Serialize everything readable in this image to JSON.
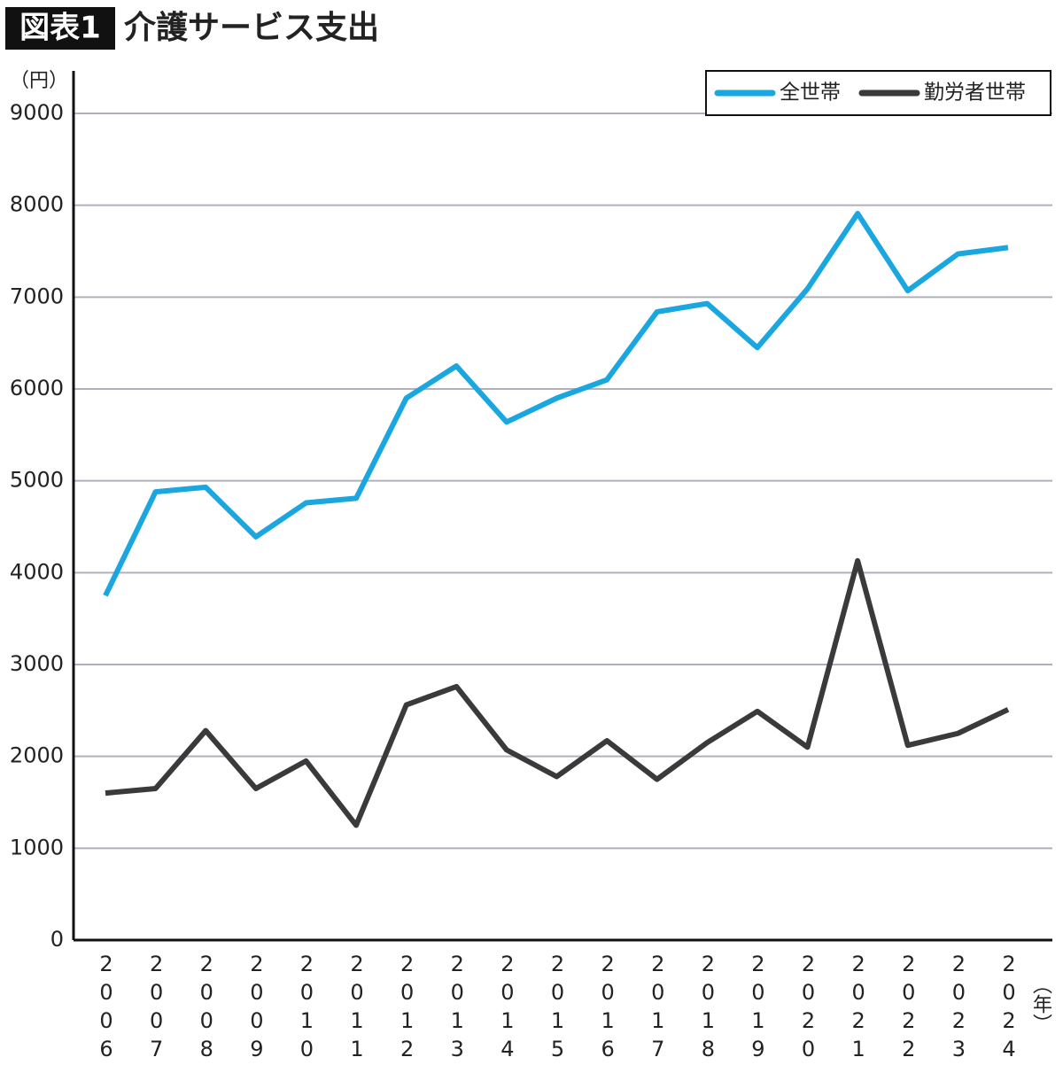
{
  "chart_data": {
    "type": "line",
    "figure_label": "図表1",
    "title": "介護サービス支出",
    "y_unit": "（円）",
    "x_unit": "（年）",
    "categories": [
      "2006",
      "2007",
      "2008",
      "2009",
      "2010",
      "2011",
      "2012",
      "2013",
      "2014",
      "2015",
      "2016",
      "2017",
      "2018",
      "2019",
      "2020",
      "2021",
      "2022",
      "2023",
      "2024"
    ],
    "series": [
      {
        "name": "全世帯",
        "color": "#1aa7e0",
        "values": [
          3750,
          4880,
          4930,
          4390,
          4760,
          4810,
          5900,
          6250,
          5640,
          5900,
          6100,
          6840,
          6930,
          6450,
          7090,
          7910,
          7070,
          7470,
          7540
        ]
      },
      {
        "name": "勤労者世帯",
        "color": "#3a3a3a",
        "values": [
          1600,
          1650,
          2280,
          1650,
          1950,
          1250,
          2560,
          2760,
          2070,
          1780,
          2170,
          1750,
          2150,
          2490,
          2100,
          4130,
          2120,
          2250,
          2510
        ]
      }
    ],
    "ylim": [
      0,
      9000
    ],
    "yticks": [
      0,
      1000,
      2000,
      3000,
      4000,
      5000,
      6000,
      7000,
      8000,
      9000
    ],
    "grid": true,
    "legend": "top-right"
  }
}
